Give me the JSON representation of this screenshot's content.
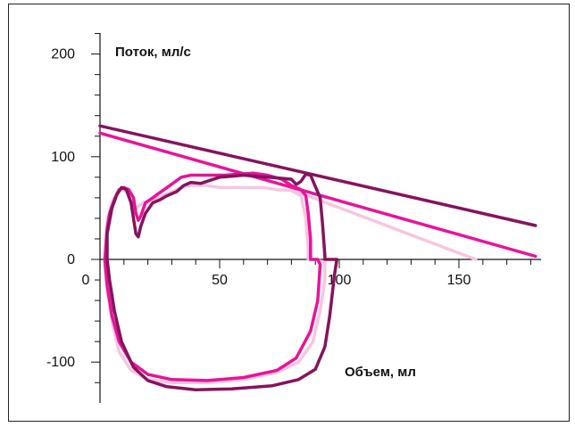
{
  "chart_data": {
    "type": "line",
    "title": "",
    "xlabel": "Объем, мл",
    "ylabel": "Поток, мл/с",
    "xlim": [
      0,
      180
    ],
    "ylim": [
      -140,
      210
    ],
    "x_ticks": [
      "0",
      "50",
      "100",
      "150"
    ],
    "y_ticks": [
      "200",
      "100",
      "0",
      "-100"
    ],
    "x_tick_values": [
      0,
      50,
      100,
      150
    ],
    "y_tick_values": [
      200,
      100,
      0,
      -100
    ],
    "grid": false,
    "legend": "none",
    "series": [
      {
        "color": "#86135e",
        "values": [
          [
            3,
            25
          ],
          [
            5,
            50
          ],
          [
            7,
            63
          ],
          [
            9,
            70
          ],
          [
            11,
            68
          ],
          [
            13,
            55
          ],
          [
            14,
            40
          ],
          [
            15,
            25
          ],
          [
            16,
            22
          ],
          [
            17,
            32
          ],
          [
            19,
            45
          ],
          [
            22,
            55
          ],
          [
            25,
            58
          ],
          [
            28,
            62
          ],
          [
            32,
            66
          ],
          [
            35,
            72
          ],
          [
            38,
            75
          ],
          [
            42,
            74
          ],
          [
            46,
            77
          ],
          [
            50,
            80
          ],
          [
            55,
            81
          ],
          [
            60,
            82
          ],
          [
            65,
            81
          ],
          [
            70,
            80
          ],
          [
            76,
            79
          ],
          [
            80,
            78
          ],
          [
            82,
            73
          ],
          [
            84,
            76
          ],
          [
            86,
            83
          ],
          [
            88,
            82
          ],
          [
            90,
            71
          ],
          [
            92,
            60
          ],
          [
            93,
            35
          ],
          [
            94,
            3
          ],
          [
            94,
            0
          ],
          [
            96,
            0
          ],
          [
            99,
            0
          ],
          [
            98,
            -15
          ],
          [
            96,
            -55
          ],
          [
            94,
            -85
          ],
          [
            90,
            -107
          ],
          [
            83,
            -117
          ],
          [
            72,
            -123
          ],
          [
            55,
            -126
          ],
          [
            40,
            -127
          ],
          [
            28,
            -124
          ],
          [
            20,
            -118
          ],
          [
            14,
            -105
          ],
          [
            9,
            -80
          ],
          [
            6,
            -50
          ],
          [
            4,
            -20
          ],
          [
            3,
            0
          ],
          [
            3,
            25
          ]
        ]
      },
      {
        "color": "#e8139a",
        "values": [
          [
            3,
            30
          ],
          [
            4,
            45
          ],
          [
            6,
            58
          ],
          [
            8,
            68
          ],
          [
            10,
            70
          ],
          [
            12,
            68
          ],
          [
            14,
            60
          ],
          [
            15,
            45
          ],
          [
            16,
            38
          ],
          [
            17,
            42
          ],
          [
            19,
            55
          ],
          [
            22,
            60
          ],
          [
            25,
            65
          ],
          [
            28,
            70
          ],
          [
            31,
            75
          ],
          [
            34,
            80
          ],
          [
            38,
            82
          ],
          [
            45,
            82
          ],
          [
            52,
            82
          ],
          [
            58,
            83
          ],
          [
            64,
            84
          ],
          [
            70,
            82
          ],
          [
            76,
            78
          ],
          [
            80,
            72
          ],
          [
            84,
            68
          ],
          [
            86,
            62
          ],
          [
            87,
            45
          ],
          [
            88,
            20
          ],
          [
            88,
            0
          ],
          [
            91,
            0
          ],
          [
            92,
            -5
          ],
          [
            91,
            -40
          ],
          [
            88,
            -70
          ],
          [
            82,
            -96
          ],
          [
            74,
            -108
          ],
          [
            60,
            -115
          ],
          [
            45,
            -118
          ],
          [
            30,
            -117
          ],
          [
            20,
            -112
          ],
          [
            13,
            -100
          ],
          [
            8,
            -80
          ],
          [
            5,
            -55
          ],
          [
            3,
            -25
          ],
          [
            2,
            0
          ],
          [
            3,
            30
          ]
        ]
      },
      {
        "color": "#f6c6df",
        "values": [
          [
            3,
            35
          ],
          [
            5,
            55
          ],
          [
            7,
            65
          ],
          [
            9,
            68
          ],
          [
            11,
            66
          ],
          [
            13,
            58
          ],
          [
            15,
            50
          ],
          [
            18,
            55
          ],
          [
            22,
            58
          ],
          [
            26,
            62
          ],
          [
            30,
            66
          ],
          [
            34,
            70
          ],
          [
            38,
            72
          ],
          [
            44,
            72
          ],
          [
            50,
            70
          ],
          [
            56,
            70
          ],
          [
            62,
            70
          ],
          [
            68,
            70
          ],
          [
            74,
            68
          ],
          [
            80,
            67
          ],
          [
            84,
            62
          ],
          [
            86,
            40
          ],
          [
            87,
            10
          ],
          [
            87,
            0
          ],
          [
            90,
            0
          ],
          [
            94,
            -3
          ],
          [
            94,
            -20
          ],
          [
            92,
            -50
          ],
          [
            89,
            -80
          ],
          [
            83,
            -100
          ],
          [
            74,
            -110
          ],
          [
            60,
            -117
          ],
          [
            45,
            -120
          ],
          [
            30,
            -120
          ],
          [
            20,
            -117
          ],
          [
            13,
            -108
          ],
          [
            8,
            -90
          ],
          [
            5,
            -60
          ],
          [
            3,
            -30
          ],
          [
            2,
            -5
          ],
          [
            3,
            35
          ]
        ]
      },
      {
        "color": "#86135e",
        "values": [
          [
            0,
            130
          ],
          [
            182,
            33
          ]
        ]
      },
      {
        "color": "#e8139a",
        "values": [
          [
            0,
            123
          ],
          [
            182,
            3
          ]
        ]
      },
      {
        "color": "#f6c6df",
        "values": [
          [
            80,
            68
          ],
          [
            157,
            0
          ]
        ]
      }
    ]
  }
}
